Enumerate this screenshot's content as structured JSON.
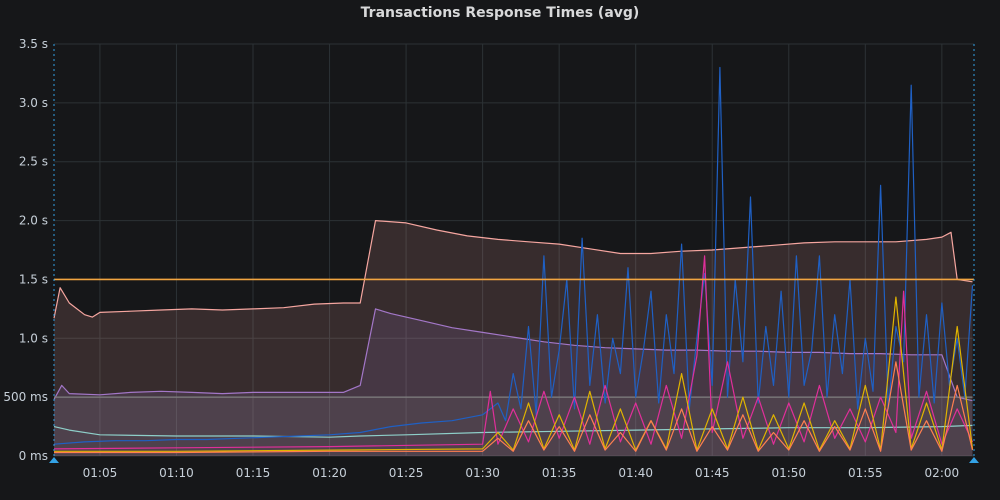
{
  "chart_data": {
    "type": "area",
    "title": "Transactions Response Times (avg)",
    "y_ticks": [
      "0 ms",
      "500 ms",
      "1.0 s",
      "1.5 s",
      "2.0 s",
      "2.5 s",
      "3.0 s",
      "3.5 s"
    ],
    "x_ticks": [
      "01:05",
      "01:10",
      "01:15",
      "01:20",
      "01:25",
      "01:30",
      "01:35",
      "01:40",
      "01:45",
      "01:50",
      "01:55",
      "02:00"
    ],
    "ylim_seconds": [
      0,
      3.5
    ],
    "x_minutes_range": [
      62.0,
      122.1
    ],
    "grid": true,
    "threshold": {
      "value_seconds": 1.5,
      "color": "#f2a541"
    },
    "series": [
      {
        "color": "#f6a6a0",
        "fill": true,
        "x": [
          62.0,
          62.4,
          63.0,
          64.0,
          64.5,
          65.0,
          67,
          69,
          71,
          73,
          75,
          77,
          79,
          80.9,
          82.0,
          83.0,
          85,
          87,
          89,
          91,
          93,
          95,
          97,
          99,
          101,
          103,
          105,
          107,
          109,
          111,
          113,
          115,
          117,
          119,
          120,
          120.6,
          121,
          122.0
        ],
        "values": [
          1.17,
          1.43,
          1.3,
          1.2,
          1.18,
          1.22,
          1.23,
          1.24,
          1.25,
          1.24,
          1.25,
          1.26,
          1.29,
          1.3,
          1.3,
          2.0,
          1.98,
          1.92,
          1.87,
          1.84,
          1.82,
          1.8,
          1.76,
          1.72,
          1.72,
          1.74,
          1.75,
          1.77,
          1.79,
          1.81,
          1.82,
          1.82,
          1.82,
          1.84,
          1.86,
          1.9,
          1.5,
          1.48
        ]
      },
      {
        "color": "#a377c8",
        "fill": true,
        "x": [
          62.0,
          62.5,
          63.0,
          65,
          67,
          69,
          71,
          73,
          75,
          77,
          79,
          80.9,
          82.0,
          83.0,
          84,
          86,
          88,
          90,
          92,
          94,
          96,
          98,
          100,
          102,
          104,
          106,
          108,
          110,
          112,
          114,
          116,
          118,
          120,
          121,
          122.0
        ],
        "values": [
          0.48,
          0.6,
          0.53,
          0.52,
          0.54,
          0.55,
          0.54,
          0.53,
          0.54,
          0.54,
          0.54,
          0.54,
          0.6,
          1.25,
          1.21,
          1.15,
          1.09,
          1.05,
          1.01,
          0.97,
          0.94,
          0.92,
          0.91,
          0.9,
          0.9,
          0.89,
          0.89,
          0.88,
          0.88,
          0.87,
          0.87,
          0.86,
          0.86,
          0.5,
          0.47
        ]
      },
      {
        "color": "#7f7f7f",
        "fill": true,
        "x": [
          62.0,
          72,
          82,
          92,
          102,
          112,
          122.0
        ],
        "values": [
          0.5,
          0.5,
          0.5,
          0.5,
          0.5,
          0.5,
          0.5
        ]
      },
      {
        "color": "#8ecfc9",
        "fill": false,
        "x": [
          62.0,
          63.0,
          65,
          70,
          75,
          80,
          82,
          85,
          90,
          95,
          100,
          105,
          110,
          115,
          120,
          122.0
        ],
        "values": [
          0.25,
          0.22,
          0.18,
          0.17,
          0.17,
          0.16,
          0.17,
          0.18,
          0.2,
          0.21,
          0.22,
          0.23,
          0.24,
          0.24,
          0.25,
          0.26
        ]
      },
      {
        "color": "#1f60c4",
        "fill": false,
        "x": [
          62.0,
          64,
          66,
          68,
          70,
          72,
          74,
          76,
          78,
          80,
          82,
          84,
          86,
          88,
          90,
          91.0,
          91.5,
          92.0,
          92.5,
          93.0,
          93.5,
          94.0,
          94.5,
          95.0,
          95.5,
          96.0,
          96.5,
          97.0,
          97.5,
          98.0,
          98.5,
          99.0,
          99.5,
          100.0,
          100.5,
          101.0,
          101.5,
          102.0,
          102.5,
          103.0,
          103.5,
          104.0,
          104.5,
          105.0,
          105.5,
          106.0,
          106.5,
          107.0,
          107.5,
          108.0,
          108.5,
          109.0,
          109.5,
          110.0,
          110.5,
          111.0,
          111.5,
          112.0,
          112.5,
          113.0,
          113.5,
          114.0,
          114.5,
          115.0,
          115.5,
          116.0,
          116.5,
          117.0,
          117.5,
          118.0,
          118.5,
          119.0,
          119.5,
          120.0,
          120.5,
          121.0,
          121.5,
          122.0
        ],
        "values": [
          0.1,
          0.12,
          0.13,
          0.13,
          0.14,
          0.14,
          0.15,
          0.16,
          0.17,
          0.18,
          0.2,
          0.25,
          0.28,
          0.3,
          0.35,
          0.45,
          0.3,
          0.7,
          0.4,
          1.1,
          0.35,
          1.7,
          0.5,
          0.9,
          1.5,
          0.4,
          1.85,
          0.6,
          1.2,
          0.45,
          1.0,
          0.7,
          1.6,
          0.5,
          0.9,
          1.4,
          0.45,
          1.2,
          0.7,
          1.8,
          0.4,
          1.0,
          1.55,
          0.6,
          3.3,
          0.5,
          1.5,
          0.8,
          2.2,
          0.45,
          1.1,
          0.6,
          1.4,
          0.5,
          1.7,
          0.6,
          0.9,
          1.7,
          0.5,
          1.2,
          0.7,
          1.5,
          0.4,
          1.0,
          0.55,
          2.3,
          0.4,
          1.1,
          0.8,
          3.15,
          0.5,
          1.2,
          0.45,
          1.3,
          0.6,
          1.0,
          0.5,
          1.45
        ]
      },
      {
        "color": "#e02f9a",
        "fill": false,
        "x": [
          62.0,
          70,
          80,
          90,
          90.5,
          91.0,
          92,
          93,
          94,
          95,
          96,
          97,
          98,
          99,
          100,
          101,
          102,
          103,
          104,
          104.5,
          105,
          106,
          107,
          108,
          109,
          110,
          111,
          112,
          113,
          114,
          115,
          116,
          117,
          117.5,
          118,
          119,
          120,
          121,
          122.0
        ],
        "values": [
          0.06,
          0.07,
          0.08,
          0.1,
          0.55,
          0.1,
          0.4,
          0.12,
          0.55,
          0.15,
          0.5,
          0.1,
          0.6,
          0.12,
          0.45,
          0.1,
          0.6,
          0.15,
          0.85,
          1.7,
          0.2,
          0.8,
          0.15,
          0.5,
          0.1,
          0.45,
          0.12,
          0.6,
          0.15,
          0.4,
          0.12,
          0.5,
          0.2,
          1.4,
          0.15,
          0.55,
          0.1,
          0.4,
          0.12
        ]
      },
      {
        "color": "#e0b400",
        "fill": false,
        "x": [
          62.0,
          70,
          80,
          90,
          91,
          92,
          93,
          94,
          95,
          96,
          97,
          98,
          99,
          100,
          101,
          102,
          103,
          104,
          105,
          106,
          107,
          108,
          109,
          110,
          111,
          112,
          113,
          114,
          115,
          116,
          117,
          118,
          119,
          120,
          121,
          122.0
        ],
        "values": [
          0.04,
          0.04,
          0.05,
          0.06,
          0.2,
          0.05,
          0.45,
          0.06,
          0.35,
          0.05,
          0.55,
          0.06,
          0.4,
          0.05,
          0.3,
          0.06,
          0.7,
          0.05,
          0.4,
          0.06,
          0.5,
          0.05,
          0.35,
          0.06,
          0.45,
          0.05,
          0.3,
          0.06,
          0.6,
          0.05,
          1.35,
          0.06,
          0.45,
          0.05,
          1.1,
          0.06
        ]
      },
      {
        "color": "#ff7f50",
        "fill": false,
        "x": [
          62.0,
          70,
          80,
          90,
          91,
          92,
          93,
          94,
          95,
          96,
          97,
          98,
          99,
          100,
          101,
          102,
          103,
          104,
          105,
          106,
          107,
          108,
          109,
          110,
          111,
          112,
          113,
          114,
          115,
          116,
          117,
          118,
          119,
          120,
          121,
          122.0
        ],
        "values": [
          0.03,
          0.03,
          0.04,
          0.04,
          0.15,
          0.04,
          0.3,
          0.05,
          0.25,
          0.04,
          0.35,
          0.05,
          0.2,
          0.04,
          0.3,
          0.05,
          0.4,
          0.04,
          0.25,
          0.05,
          0.35,
          0.04,
          0.2,
          0.05,
          0.3,
          0.04,
          0.25,
          0.05,
          0.4,
          0.04,
          0.8,
          0.05,
          0.3,
          0.04,
          0.6,
          0.05
        ]
      }
    ]
  }
}
